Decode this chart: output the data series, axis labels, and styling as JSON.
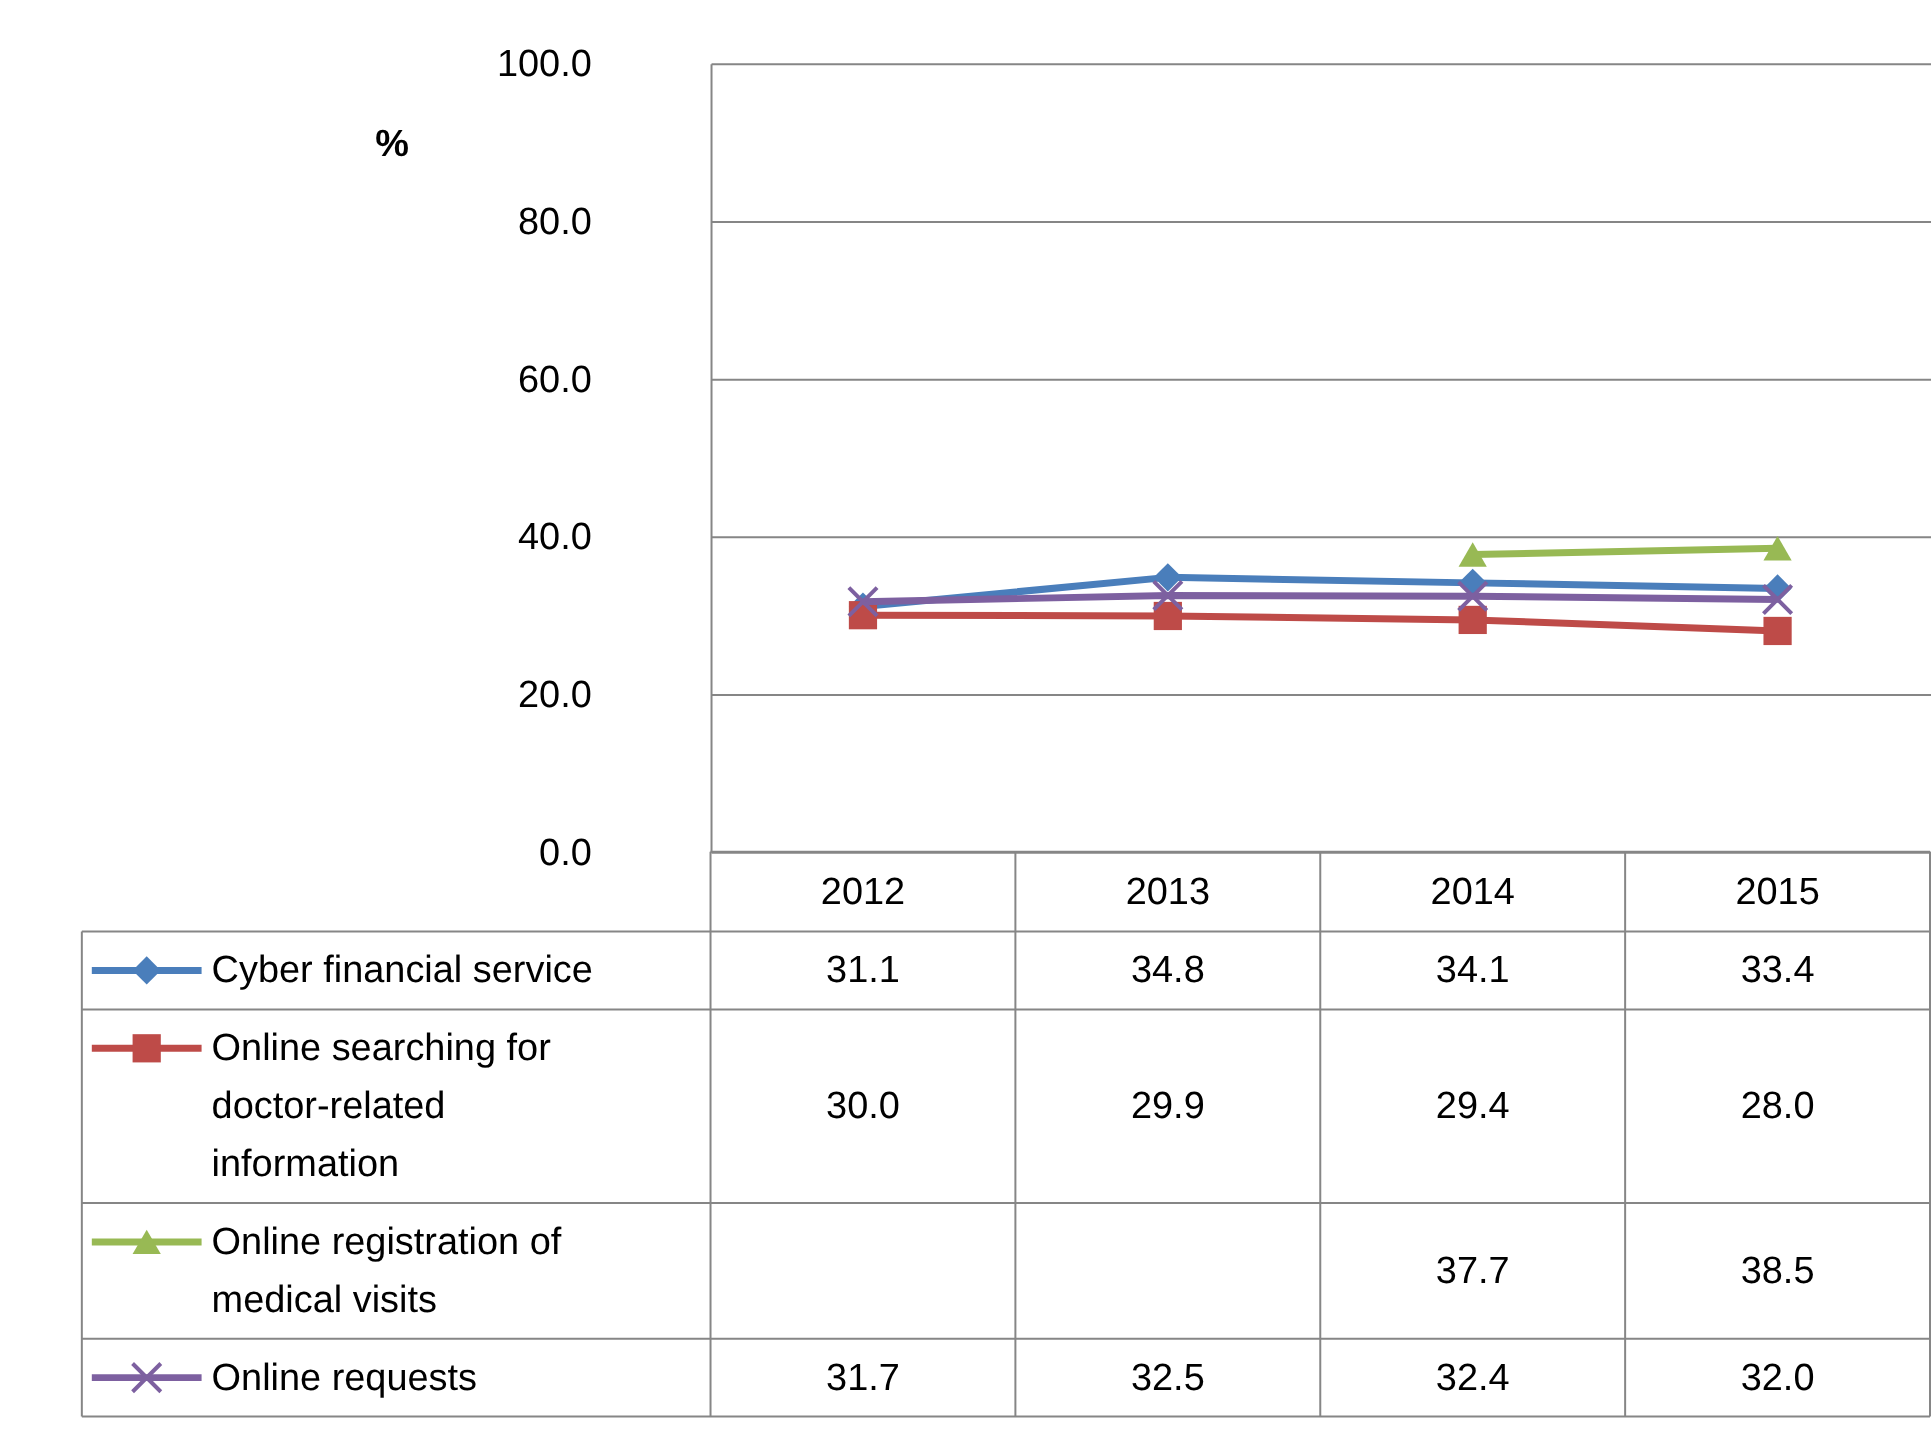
{
  "chart_data": {
    "type": "line",
    "ylabel": "%",
    "categories": [
      "2012",
      "2013",
      "2014",
      "2015"
    ],
    "ylim": [
      0,
      100
    ],
    "yticks": [
      {
        "value": 0,
        "label": "0.0"
      },
      {
        "value": 20,
        "label": "20.0"
      },
      {
        "value": 40,
        "label": "40.0"
      },
      {
        "value": 60,
        "label": "60.0"
      },
      {
        "value": 80,
        "label": "80.0"
      },
      {
        "value": 100,
        "label": "100.0"
      }
    ],
    "grid": "y",
    "legend": "bottom",
    "series": [
      {
        "name": "Cyber financial service",
        "color": "#4a7ebb",
        "marker": "diamond",
        "values": [
          31.1,
          34.8,
          34.1,
          33.4
        ],
        "value_labels": [
          "31.1",
          "34.8",
          "34.1",
          "33.4"
        ]
      },
      {
        "name": "Online searching for doctor-related information",
        "color": "#be4b48",
        "marker": "square",
        "values": [
          30.0,
          29.9,
          29.4,
          28.0
        ],
        "value_labels": [
          "30.0",
          "29.9",
          "29.4",
          "28.0"
        ]
      },
      {
        "name": "Online registration of medical visits",
        "color": "#98b954",
        "marker": "triangle",
        "values": [
          null,
          null,
          37.7,
          38.5
        ],
        "value_labels": [
          null,
          null,
          "37.7",
          "38.5"
        ]
      },
      {
        "name": "Online requests",
        "color": "#7d60a0",
        "marker": "cross",
        "values": [
          31.7,
          32.5,
          32.4,
          32.0
        ],
        "value_labels": [
          "31.7",
          "32.5",
          "32.4",
          "32.0"
        ]
      }
    ]
  }
}
